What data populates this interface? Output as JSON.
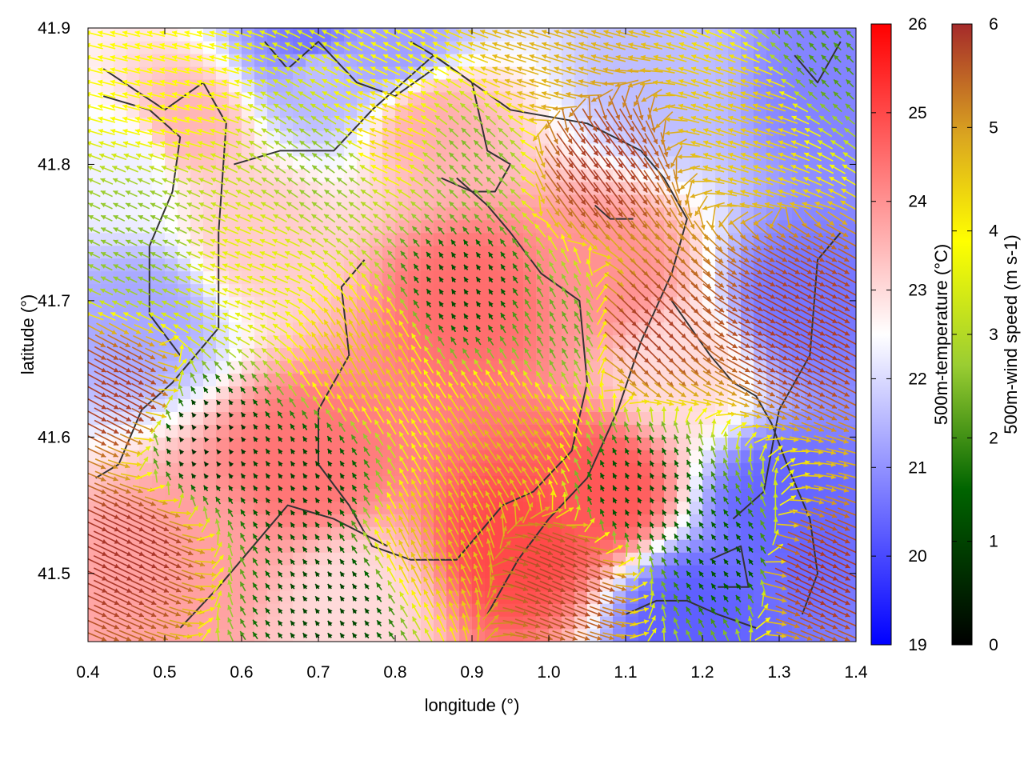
{
  "chart_data": {
    "type": "heatmap",
    "title": "",
    "xlabel": "longitude (°)",
    "ylabel": "latitude (°)",
    "xlim": [
      0.4,
      1.4
    ],
    "ylim": [
      41.45,
      41.9
    ],
    "xticks": [
      "0.4",
      "0.5",
      "0.6",
      "0.7",
      "0.8",
      "0.9",
      "1.0",
      "1.1",
      "1.2",
      "1.3",
      "1.4"
    ],
    "yticks": [
      "41.5",
      "41.6",
      "41.7",
      "41.8",
      "41.9"
    ],
    "grid": false,
    "temperature_colorbar": {
      "label": "500m-temperature (°C)",
      "range": [
        19,
        26
      ],
      "ticks": [
        "19",
        "20",
        "21",
        "22",
        "23",
        "24",
        "25",
        "26"
      ],
      "colors": [
        "#0000ff",
        "#ffffff",
        "#ff0000"
      ]
    },
    "wind_colorbar": {
      "label": "500m-wind speed (m s-1)",
      "range": [
        0,
        6
      ],
      "ticks": [
        "0",
        "1",
        "2",
        "3",
        "4",
        "5",
        "6"
      ],
      "colors": [
        "#000000",
        "#006400",
        "#9acd32",
        "#ffff00",
        "#daa520",
        "#a52a2a"
      ]
    },
    "temperature_regions": [
      {
        "lon": 0.47,
        "lat": 41.69,
        "temp": 21.3
      },
      {
        "lon": 0.45,
        "lat": 41.8,
        "temp": 22.3
      },
      {
        "lon": 0.7,
        "lat": 41.87,
        "temp": 21.6
      },
      {
        "lon": 0.69,
        "lat": 41.89,
        "temp": 20.6
      },
      {
        "lon": 0.8,
        "lat": 41.89,
        "temp": 21.2
      },
      {
        "lon": 1.15,
        "lat": 41.86,
        "temp": 21.6
      },
      {
        "lon": 1.36,
        "lat": 41.86,
        "temp": 20.8
      },
      {
        "lon": 1.33,
        "lat": 41.7,
        "temp": 20.6
      },
      {
        "lon": 1.3,
        "lat": 41.55,
        "temp": 20.4
      },
      {
        "lon": 1.18,
        "lat": 41.47,
        "temp": 20.3
      },
      {
        "lon": 0.9,
        "lat": 41.7,
        "temp": 24.5
      },
      {
        "lon": 0.68,
        "lat": 41.58,
        "temp": 24.4
      },
      {
        "lon": 0.96,
        "lat": 41.52,
        "temp": 25.0
      },
      {
        "lon": 1.07,
        "lat": 41.56,
        "temp": 24.8
      },
      {
        "lon": 1.08,
        "lat": 41.72,
        "temp": 24.0
      },
      {
        "lon": 0.85,
        "lat": 41.83,
        "temp": 23.6
      },
      {
        "lon": 0.53,
        "lat": 41.83,
        "temp": 23.5
      },
      {
        "lon": 0.54,
        "lat": 41.51,
        "temp": 23.8
      },
      {
        "lon": 0.75,
        "lat": 41.48,
        "temp": 23.0
      },
      {
        "lon": 1.17,
        "lat": 41.65,
        "temp": 23.0
      },
      {
        "lon": 0.62,
        "lat": 41.75,
        "temp": 23.2
      }
    ],
    "wind_regions": [
      {
        "lon": 0.45,
        "lat": 41.52,
        "speed": 5.9,
        "u": 0.9,
        "v": -0.43
      },
      {
        "lon": 0.44,
        "lat": 41.63,
        "speed": 5.8,
        "u": 0.88,
        "v": -0.48
      },
      {
        "lon": 1.34,
        "lat": 41.5,
        "speed": 5.9,
        "u": 0.9,
        "v": -0.43
      },
      {
        "lon": 1.32,
        "lat": 41.68,
        "speed": 5.8,
        "u": 0.88,
        "v": -0.48
      },
      {
        "lon": 1.12,
        "lat": 41.68,
        "speed": 5.8,
        "u": 0.7,
        "v": -0.71
      },
      {
        "lon": 1.06,
        "lat": 41.8,
        "speed": 5.8,
        "u": 0.6,
        "v": -0.8
      },
      {
        "lon": 1.02,
        "lat": 41.5,
        "speed": 5.7,
        "u": 0.92,
        "v": -0.38
      },
      {
        "lon": 1.26,
        "lat": 41.84,
        "speed": 4.3,
        "u": -0.95,
        "v": 0.3
      },
      {
        "lon": 1.0,
        "lat": 41.88,
        "speed": 4.6,
        "u": -0.95,
        "v": 0.3
      },
      {
        "lon": 0.5,
        "lat": 41.86,
        "speed": 3.6,
        "u": -0.97,
        "v": 0.24
      },
      {
        "lon": 0.78,
        "lat": 41.82,
        "speed": 4.0,
        "u": -0.93,
        "v": 0.37
      },
      {
        "lon": 0.6,
        "lat": 41.72,
        "speed": 3.3,
        "u": -0.93,
        "v": 0.37
      },
      {
        "lon": 0.76,
        "lat": 41.66,
        "speed": 4.3,
        "u": -0.5,
        "v": 0.87
      },
      {
        "lon": 0.95,
        "lat": 41.6,
        "speed": 4.5,
        "u": -0.55,
        "v": 0.83
      },
      {
        "lon": 0.85,
        "lat": 41.52,
        "speed": 4.4,
        "u": -0.45,
        "v": 0.89
      },
      {
        "lon": 0.47,
        "lat": 41.74,
        "speed": 2.3,
        "u": -0.9,
        "v": 0.43
      },
      {
        "lon": 0.55,
        "lat": 41.6,
        "speed": 0.5,
        "u": -0.6,
        "v": 0.8
      },
      {
        "lon": 0.68,
        "lat": 41.57,
        "speed": 0.8,
        "u": -0.55,
        "v": 0.83
      },
      {
        "lon": 0.89,
        "lat": 41.71,
        "speed": 0.9,
        "u": -0.55,
        "v": 0.83
      },
      {
        "lon": 1.11,
        "lat": 41.56,
        "speed": 0.9,
        "u": -0.45,
        "v": 0.89
      },
      {
        "lon": 0.72,
        "lat": 41.48,
        "speed": 0.8,
        "u": -0.6,
        "v": 0.8
      },
      {
        "lon": 1.24,
        "lat": 41.51,
        "speed": 1.0,
        "u": -0.6,
        "v": 0.8
      },
      {
        "lon": 1.02,
        "lat": 41.68,
        "speed": 2.0,
        "u": -0.5,
        "v": 0.87
      },
      {
        "lon": 0.72,
        "lat": 41.8,
        "speed": 2.3,
        "u": -0.8,
        "v": 0.6
      },
      {
        "lon": 0.9,
        "lat": 41.8,
        "speed": 2.2,
        "u": -0.7,
        "v": 0.71
      },
      {
        "lon": 1.36,
        "lat": 41.88,
        "speed": 1.8,
        "u": -0.7,
        "v": 0.71
      }
    ],
    "contours": [
      [
        [
          0.42,
          41.87
        ],
        [
          0.5,
          41.84
        ],
        [
          0.55,
          41.86
        ],
        [
          0.58,
          41.83
        ],
        [
          0.57,
          41.75
        ],
        [
          0.57,
          41.68
        ],
        [
          0.51,
          41.64
        ],
        [
          0.47,
          41.62
        ],
        [
          0.44,
          41.58
        ],
        [
          0.41,
          41.57
        ]
      ],
      [
        [
          0.42,
          41.85
        ],
        [
          0.48,
          41.84
        ],
        [
          0.52,
          41.82
        ],
        [
          0.51,
          41.78
        ],
        [
          0.48,
          41.74
        ],
        [
          0.48,
          41.69
        ],
        [
          0.52,
          41.66
        ]
      ],
      [
        [
          0.59,
          41.8
        ],
        [
          0.65,
          41.81
        ],
        [
          0.72,
          41.81
        ],
        [
          0.77,
          41.84
        ],
        [
          0.85,
          41.88
        ],
        [
          0.9,
          41.86
        ],
        [
          0.92,
          41.81
        ],
        [
          0.95,
          41.8
        ],
        [
          0.93,
          41.78
        ],
        [
          0.9,
          41.78
        ],
        [
          0.86,
          41.79
        ]
      ],
      [
        [
          0.82,
          41.89
        ],
        [
          0.85,
          41.88
        ],
        [
          0.9,
          41.86
        ],
        [
          0.95,
          41.84
        ],
        [
          1.05,
          41.83
        ],
        [
          1.12,
          41.81
        ],
        [
          1.15,
          41.79
        ],
        [
          1.18,
          41.76
        ],
        [
          1.16,
          41.72
        ],
        [
          1.12,
          41.67
        ],
        [
          1.09,
          41.62
        ],
        [
          1.05,
          41.57
        ],
        [
          1.0,
          41.54
        ],
        [
          0.96,
          41.51
        ],
        [
          0.92,
          41.47
        ]
      ],
      [
        [
          0.88,
          41.79
        ],
        [
          0.92,
          41.77
        ],
        [
          0.95,
          41.75
        ],
        [
          0.99,
          41.72
        ],
        [
          1.04,
          41.7
        ],
        [
          1.05,
          41.64
        ],
        [
          1.03,
          41.59
        ],
        [
          0.98,
          41.56
        ],
        [
          0.94,
          41.55
        ],
        [
          0.88,
          41.51
        ],
        [
          0.82,
          41.51
        ],
        [
          0.77,
          41.52
        ],
        [
          0.74,
          41.55
        ],
        [
          0.7,
          41.58
        ],
        [
          0.7,
          41.62
        ],
        [
          0.74,
          41.66
        ],
        [
          0.73,
          41.71
        ],
        [
          0.76,
          41.73
        ]
      ],
      [
        [
          0.52,
          41.46
        ],
        [
          0.57,
          41.49
        ],
        [
          0.6,
          41.51
        ],
        [
          0.66,
          41.55
        ],
        [
          0.72,
          41.54
        ],
        [
          0.79,
          41.52
        ]
      ],
      [
        [
          1.16,
          41.7
        ],
        [
          1.21,
          41.66
        ],
        [
          1.24,
          41.64
        ],
        [
          1.27,
          41.63
        ],
        [
          1.29,
          41.61
        ],
        [
          1.31,
          41.58
        ],
        [
          1.34,
          41.54
        ],
        [
          1.35,
          41.5
        ],
        [
          1.33,
          41.47
        ]
      ],
      [
        [
          1.1,
          41.47
        ],
        [
          1.14,
          41.48
        ],
        [
          1.18,
          41.48
        ],
        [
          1.22,
          41.47
        ],
        [
          1.27,
          41.46
        ]
      ],
      [
        [
          1.21,
          41.51
        ],
        [
          1.25,
          41.52
        ],
        [
          1.26,
          41.49
        ],
        [
          1.22,
          41.49
        ]
      ],
      [
        [
          1.38,
          41.75
        ],
        [
          1.35,
          41.73
        ],
        [
          1.34,
          41.66
        ],
        [
          1.3,
          41.62
        ],
        [
          1.28,
          41.56
        ],
        [
          1.24,
          41.54
        ]
      ],
      [
        [
          0.63,
          41.89
        ],
        [
          0.66,
          41.87
        ],
        [
          0.7,
          41.89
        ],
        [
          0.75,
          41.86
        ],
        [
          0.8,
          41.85
        ],
        [
          0.85,
          41.87
        ]
      ],
      [
        [
          1.32,
          41.88
        ],
        [
          1.35,
          41.86
        ],
        [
          1.38,
          41.89
        ]
      ],
      [
        [
          1.06,
          41.77
        ],
        [
          1.08,
          41.76
        ],
        [
          1.11,
          41.76
        ]
      ]
    ]
  }
}
